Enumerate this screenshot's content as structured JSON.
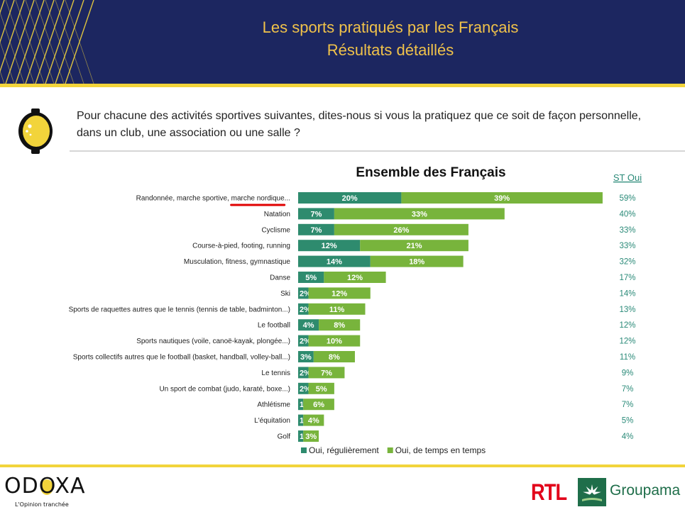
{
  "header": {
    "title_line_1": "Les sports pratiqués par les Français",
    "title_line_2": "Résultats détaillés"
  },
  "question": "Pour chacune des activités sportives suivantes, dites-nous si vous la pratiquez que ce soit de façon personnelle, dans un club, une association ou une salle ?",
  "chart_data": {
    "type": "bar",
    "orientation": "horizontal",
    "stacked": true,
    "title": "Ensemble des Français",
    "total_column_header": "ST Oui",
    "categories": [
      "Randonnée, marche sportive, marche nordique...",
      "Natation",
      "Cyclisme",
      "Course-à-pied, footing, running",
      "Musculation, fitness, gymnastique",
      "Danse",
      "Ski",
      "Sports de raquettes autres que le tennis (tennis de table, badminton...)",
      "Le football",
      "Sports nautiques (voile, canoë-kayak, plongée...)",
      "Sports collectifs autres que le football (basket, handball, volley-ball...)",
      "Le tennis",
      "Un sport de combat (judo, karaté, boxe...)",
      "Athlétisme",
      "L'équitation",
      "Golf"
    ],
    "series": [
      {
        "name": "Oui, régulièrement",
        "color": "#2e8b6e",
        "values": [
          20,
          7,
          7,
          12,
          14,
          5,
          2,
          2,
          4,
          2,
          3,
          2,
          2,
          1,
          1,
          1
        ],
        "labels": [
          "20%",
          "7%",
          "7%",
          "12%",
          "14%",
          "5%",
          "2%",
          "2%",
          "4%",
          "2%",
          "3%",
          "2%",
          "2%",
          "1%",
          "1%",
          "1%"
        ]
      },
      {
        "name": "Oui, de temps en temps",
        "color": "#78b43c",
        "values": [
          39,
          33,
          26,
          21,
          18,
          12,
          12,
          11,
          8,
          10,
          8,
          7,
          5,
          6,
          4,
          3
        ],
        "labels": [
          "39%",
          "33%",
          "26%",
          "21%",
          "18%",
          "12%",
          "12%",
          "11%",
          "8%",
          "10%",
          "8%",
          "7%",
          "5%",
          "6%",
          "4%",
          "3%"
        ]
      }
    ],
    "totals": [
      59,
      40,
      33,
      33,
      32,
      17,
      14,
      13,
      12,
      12,
      11,
      9,
      7,
      7,
      5,
      4
    ],
    "total_labels": [
      "59%",
      "40%",
      "33%",
      "33%",
      "32%",
      "17%",
      "14%",
      "13%",
      "12%",
      "12%",
      "11%",
      "9%",
      "7%",
      "7%",
      "5%",
      "4%"
    ],
    "legend_position": "bottom",
    "highlight_text": "marche nordique",
    "highlight_color": "#e00000",
    "total_color": "#2a8a78"
  },
  "footer": {
    "odoxa_logo_text": "ODOXA",
    "odoxa_tagline": "L'Opinion tranchée",
    "rtl_logo_text": "RTL",
    "groupama_logo_text": "Groupama"
  },
  "colors": {
    "header_bg": "#1c2660",
    "title": "#f0c24a",
    "accent_yellow": "#f2d43b"
  }
}
